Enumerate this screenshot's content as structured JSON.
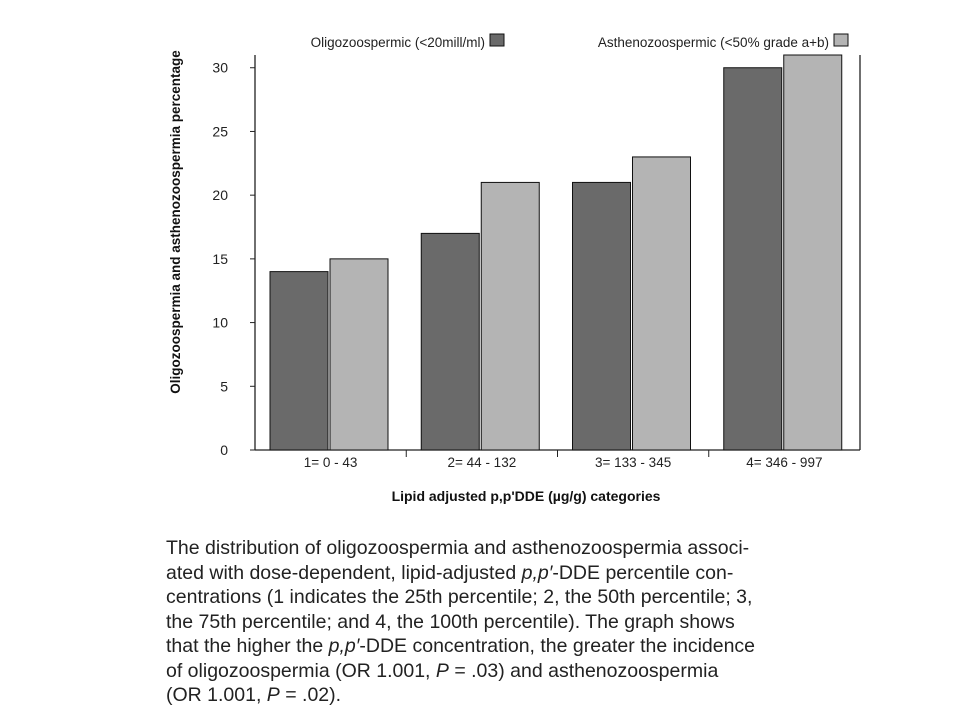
{
  "chart_data": {
    "type": "bar",
    "ylabel": "Oligozoospermia and asthenozoospermia percentage",
    "xlabel": "Lipid adjusted p,p'DDE (µg/g) categories",
    "categories": [
      "1= 0 - 43",
      "2= 44 - 132",
      "3= 133 - 345",
      "4= 346 - 997"
    ],
    "series": [
      {
        "name": "Oligozoospermic (<20mill/ml)",
        "values": [
          14,
          17,
          21,
          30
        ],
        "color": "#6a6a6a"
      },
      {
        "name": "Asthenozoospermic (<50% grade a+b)",
        "values": [
          15,
          21,
          23,
          31
        ],
        "color": "#b4b4b4"
      }
    ],
    "ylim": [
      0,
      31
    ],
    "yticks": [
      0,
      5,
      10,
      15,
      20,
      25,
      30
    ],
    "grid": false,
    "legend_position": "top"
  },
  "caption": {
    "lines": [
      [
        {
          "t": "The distribution of oligozoospermia and asthenozoospermia associ-"
        }
      ],
      [
        {
          "t": "ated with dose-dependent, lipid-adjusted "
        },
        {
          "t": "p,p′",
          "i": true
        },
        {
          "t": "-DDE percentile con-"
        }
      ],
      [
        {
          "t": "centrations (1 indicates the 25th percentile; 2, the 50th percentile; 3,"
        }
      ],
      [
        {
          "t": "the 75th percentile; and 4, the 100th percentile). The graph shows"
        }
      ],
      [
        {
          "t": "that the higher the "
        },
        {
          "t": "p,p′",
          "i": true
        },
        {
          "t": "-DDE concentration, the greater the incidence"
        }
      ],
      [
        {
          "t": "of oligozoospermia (OR 1.001, "
        },
        {
          "t": "P",
          "i": true
        },
        {
          "t": " = .03) and asthenozoospermia"
        }
      ],
      [
        {
          "t": "(OR 1.001, "
        },
        {
          "t": "P",
          "i": true
        },
        {
          "t": " = .02)."
        }
      ]
    ]
  }
}
